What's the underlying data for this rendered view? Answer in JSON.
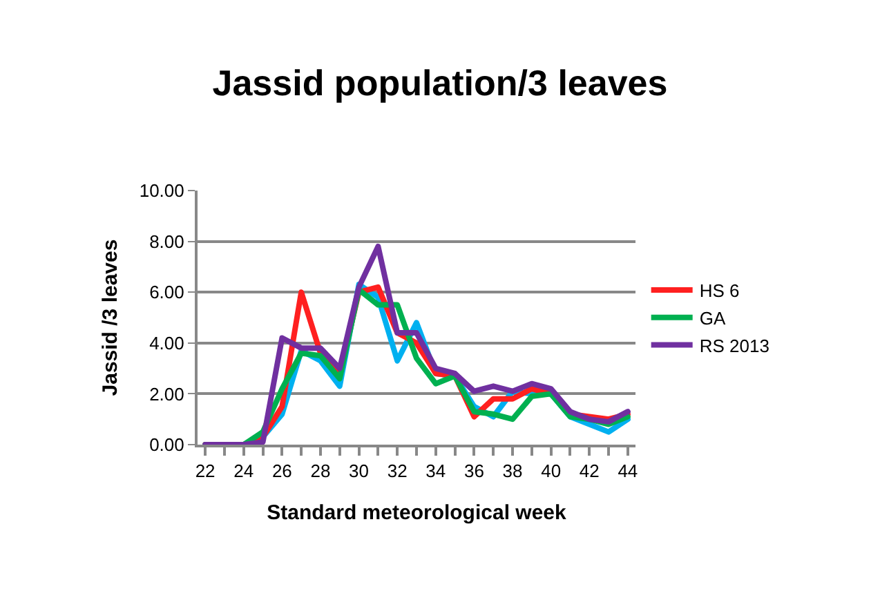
{
  "chart_data": {
    "type": "line",
    "title": "Jassid population/3 leaves",
    "xlabel": "Standard meteorological week",
    "ylabel": "Jassid /3 leaves",
    "x": [
      22,
      23,
      24,
      25,
      26,
      27,
      28,
      29,
      30,
      31,
      32,
      33,
      34,
      35,
      36,
      37,
      38,
      39,
      40,
      41,
      42,
      43,
      44
    ],
    "series": [
      {
        "color": "#00b0f0",
        "values": [
          null,
          null,
          0,
          0.3,
          1.2,
          3.7,
          3.3,
          2.3,
          6.3,
          5.8,
          3.3,
          4.8,
          2.8,
          2.7,
          1.5,
          1.1,
          2.1,
          2.0,
          2.0,
          1.1,
          0.8,
          0.5,
          1.0
        ]
      },
      {
        "name": "HS 6",
        "color": "#ff2020",
        "values": [
          0,
          0,
          0,
          0.3,
          1.5,
          6.0,
          3.6,
          2.8,
          6.0,
          6.2,
          4.4,
          4.0,
          2.8,
          2.7,
          1.1,
          1.8,
          1.8,
          2.2,
          2.0,
          1.2,
          1.1,
          1.0,
          1.2
        ]
      },
      {
        "name": "GA",
        "color": "#00b050",
        "values": [
          0,
          0,
          0,
          0.5,
          2.2,
          3.6,
          3.5,
          2.6,
          6.1,
          5.5,
          5.5,
          3.4,
          2.4,
          2.7,
          1.3,
          1.2,
          1.0,
          1.9,
          2.0,
          1.1,
          1.0,
          0.8,
          1.1
        ]
      },
      {
        "name": "RS 2013",
        "color": "#7030a0",
        "values": [
          0,
          0,
          0,
          0.1,
          4.2,
          3.8,
          3.8,
          3.0,
          6.2,
          7.8,
          4.4,
          4.4,
          3.0,
          2.8,
          2.1,
          2.3,
          2.1,
          2.4,
          2.2,
          1.3,
          1.0,
          0.9,
          1.3
        ]
      }
    ],
    "xlim": [
      21.6,
      44.4
    ],
    "xticks": [
      22,
      {
        "value": 23,
        "label": null
      },
      24,
      {
        "value": 25,
        "label": null
      },
      26,
      {
        "value": 27,
        "label": null
      },
      28,
      {
        "value": 29,
        "label": null
      },
      30,
      {
        "value": 31,
        "label": null
      },
      32,
      {
        "value": 33,
        "label": null
      },
      34,
      {
        "value": 35,
        "label": null
      },
      36,
      {
        "value": 37,
        "label": null
      },
      38,
      {
        "value": 39,
        "label": null
      },
      40,
      {
        "value": 41,
        "label": null
      },
      42,
      {
        "value": 43,
        "label": null
      },
      44
    ],
    "ylim": [
      0,
      10
    ],
    "yticks": [
      {
        "value": 0,
        "label": "0.00"
      },
      {
        "value": 2,
        "label": "2.00"
      },
      {
        "value": 4,
        "label": "4.00"
      },
      {
        "value": 6,
        "label": "6.00"
      },
      {
        "value": 8,
        "label": "8.00"
      },
      {
        "value": 10,
        "label": "10.00"
      }
    ],
    "grid": "y",
    "legend": "right",
    "marker": "none",
    "line_style": "solid"
  }
}
